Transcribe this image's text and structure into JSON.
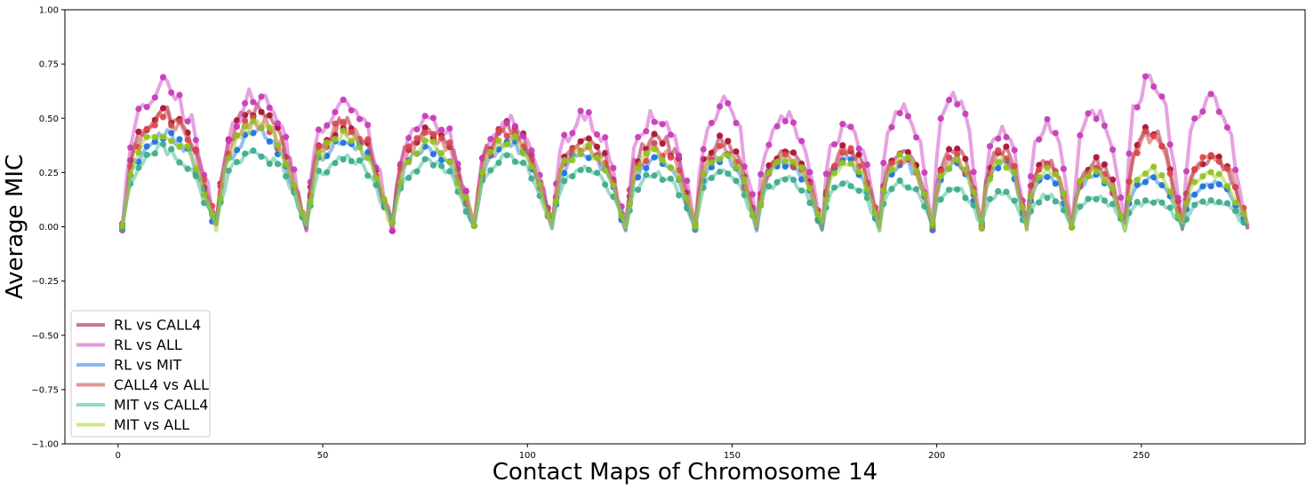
{
  "chart_data": {
    "type": "line",
    "xlabel": "Contact Maps of Chromosome 14",
    "ylabel": "Average MIC",
    "xlim": [
      -13,
      290
    ],
    "ylim": [
      -1.0,
      1.0
    ],
    "xticks": [
      0,
      50,
      100,
      150,
      200,
      250
    ],
    "yticks": [
      -1.0,
      -0.75,
      -0.5,
      -0.25,
      0.0,
      0.25,
      0.5,
      0.75,
      1.0
    ],
    "ytick_labels": [
      "−1.00",
      "−0.75",
      "−0.50",
      "−0.25",
      "0.00",
      "0.25",
      "0.50",
      "0.75",
      "1.00"
    ],
    "grid": false,
    "legend_position": "lower-left",
    "x_range": [
      1,
      276
    ],
    "segment_starts": [
      1,
      24,
      46,
      67,
      87,
      106,
      124,
      141,
      156,
      172,
      186,
      199,
      211,
      222,
      233,
      246,
      260,
      276
    ],
    "series": [
      {
        "name": "RL vs CALL4",
        "color": "#b01c40",
        "point_color": "#a8102e",
        "peaks": [
          0.53,
          0.55,
          0.47,
          0.45,
          0.47,
          0.4,
          0.42,
          0.4,
          0.34,
          0.36,
          0.34,
          0.36,
          0.36,
          0.3,
          0.3,
          0.44,
          0.32,
          0.2
        ]
      },
      {
        "name": "RL vs ALL",
        "color": "#d156c8",
        "point_color": "#c538b8",
        "peaks": [
          0.64,
          0.6,
          0.56,
          0.5,
          0.5,
          0.5,
          0.52,
          0.56,
          0.5,
          0.46,
          0.54,
          0.62,
          0.44,
          0.48,
          0.52,
          0.7,
          0.58,
          0.2
        ]
      },
      {
        "name": "RL vs MIT",
        "color": "#3b88e6",
        "point_color": "#1a6fe0",
        "peaks": [
          0.42,
          0.44,
          0.4,
          0.36,
          0.38,
          0.34,
          0.32,
          0.32,
          0.3,
          0.3,
          0.3,
          0.3,
          0.3,
          0.24,
          0.24,
          0.22,
          0.2,
          0.16
        ]
      },
      {
        "name": "CALL4 vs ALL",
        "color": "#d0504a",
        "point_color": "#d9474a",
        "peaks": [
          0.5,
          0.5,
          0.46,
          0.42,
          0.44,
          0.38,
          0.36,
          0.36,
          0.32,
          0.34,
          0.32,
          0.32,
          0.34,
          0.28,
          0.26,
          0.42,
          0.34,
          0.18
        ]
      },
      {
        "name": "MIT vs CALL4",
        "color": "#4dbf98",
        "point_color": "#3aab8a",
        "peaks": [
          0.36,
          0.34,
          0.32,
          0.3,
          0.32,
          0.26,
          0.24,
          0.26,
          0.22,
          0.2,
          0.2,
          0.18,
          0.16,
          0.14,
          0.14,
          0.12,
          0.12,
          0.06
        ]
      },
      {
        "name": "MIT vs ALL",
        "color": "#a6d63c",
        "point_color": "#8fc21c",
        "peaks": [
          0.44,
          0.46,
          0.42,
          0.38,
          0.4,
          0.36,
          0.34,
          0.34,
          0.32,
          0.3,
          0.32,
          0.3,
          0.3,
          0.26,
          0.26,
          0.26,
          0.24,
          0.12
        ]
      }
    ]
  }
}
